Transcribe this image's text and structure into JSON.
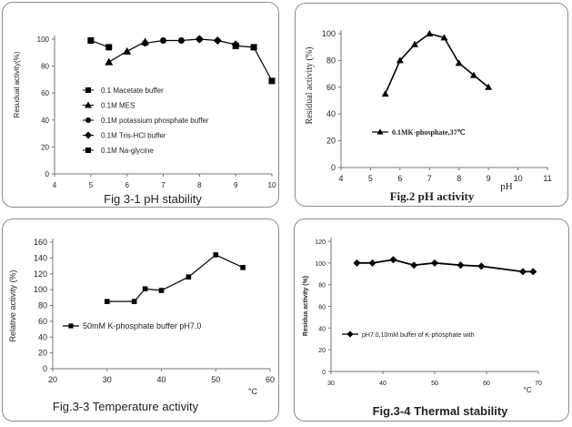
{
  "chart_data": [
    {
      "type": "line",
      "title": "Fig 3-1 pH stability",
      "ylabel": "Resudual activity(%)",
      "xlabel": "",
      "xlim": [
        4,
        10
      ],
      "ylim": [
        0,
        100
      ],
      "xticks": [
        4,
        5,
        6,
        7,
        8,
        9,
        10
      ],
      "yticks": [
        0,
        20,
        40,
        60,
        80,
        100
      ],
      "legend_position": "left",
      "series": [
        {
          "name": "0.1 Macetate buffer",
          "marker": "square",
          "x": [
            5,
            5.5
          ],
          "y": [
            99,
            94
          ]
        },
        {
          "name": "0.1M MES",
          "marker": "triangle",
          "x": [
            5.5,
            6,
            6.5
          ],
          "y": [
            83,
            91,
            98
          ]
        },
        {
          "name": "0.1M potassium phosphate buffer",
          "marker": "circle",
          "x": [
            6.5,
            7,
            7.5,
            8
          ],
          "y": [
            97,
            99,
            99,
            100
          ]
        },
        {
          "name": "0.1M Tris-HCl buffer",
          "marker": "diamond",
          "x": [
            8,
            8.5,
            9
          ],
          "y": [
            100,
            99,
            96
          ]
        },
        {
          "name": "0.1M Na-glycine",
          "marker": "square",
          "x": [
            9,
            9.5,
            10
          ],
          "y": [
            95,
            94,
            69
          ]
        }
      ]
    },
    {
      "type": "line",
      "title": "Fig.2 pH activity",
      "ylabel": "Residual activity (%)",
      "xlabel": "pH",
      "xlim": [
        4,
        11
      ],
      "ylim": [
        0,
        100
      ],
      "xticks": [
        4,
        5,
        6,
        7,
        8,
        9,
        10,
        11
      ],
      "yticks": [
        0,
        20,
        40,
        60,
        80,
        100
      ],
      "legend_position": "bottom-center",
      "series": [
        {
          "name": "0.1MK-phosphate,37℃",
          "marker": "triangle",
          "x": [
            5.5,
            6,
            6.5,
            7,
            7.5,
            8,
            8.5,
            9
          ],
          "y": [
            55,
            80,
            92,
            100,
            97,
            78,
            69,
            60
          ]
        }
      ]
    },
    {
      "type": "line",
      "title": "Fig.3-3 Temperature activity",
      "ylabel": "Relative activity (%)",
      "xlabel": "°C",
      "xlim": [
        20,
        60
      ],
      "ylim": [
        0,
        160
      ],
      "xticks": [
        20,
        30,
        40,
        50,
        60
      ],
      "yticks": [
        0,
        20,
        40,
        60,
        80,
        100,
        120,
        140,
        160
      ],
      "legend_position": "center-left",
      "series": [
        {
          "name": "50mM K-phosphate buffer pH7.0",
          "marker": "square",
          "x": [
            30,
            35,
            37,
            40,
            45,
            50,
            55
          ],
          "y": [
            85,
            85,
            101,
            99,
            116,
            144,
            128
          ]
        }
      ]
    },
    {
      "type": "line",
      "title": "Fig.3-4 Thermal stability",
      "ylabel": "Residua activity (%)",
      "xlabel": "°C",
      "xlim": [
        30,
        70
      ],
      "ylim": [
        0,
        120
      ],
      "xticks": [
        30,
        40,
        50,
        60,
        70
      ],
      "yticks": [
        0,
        20,
        40,
        60,
        80,
        100,
        120
      ],
      "legend_position": "center-left",
      "series": [
        {
          "name": "pH7.0,10mM buffer of K-phosphate with",
          "marker": "diamond",
          "x": [
            35,
            38,
            42,
            46,
            50,
            55,
            59,
            67,
            69
          ],
          "y": [
            100,
            100,
            103,
            98,
            100,
            98,
            97,
            92,
            92
          ]
        }
      ]
    }
  ]
}
